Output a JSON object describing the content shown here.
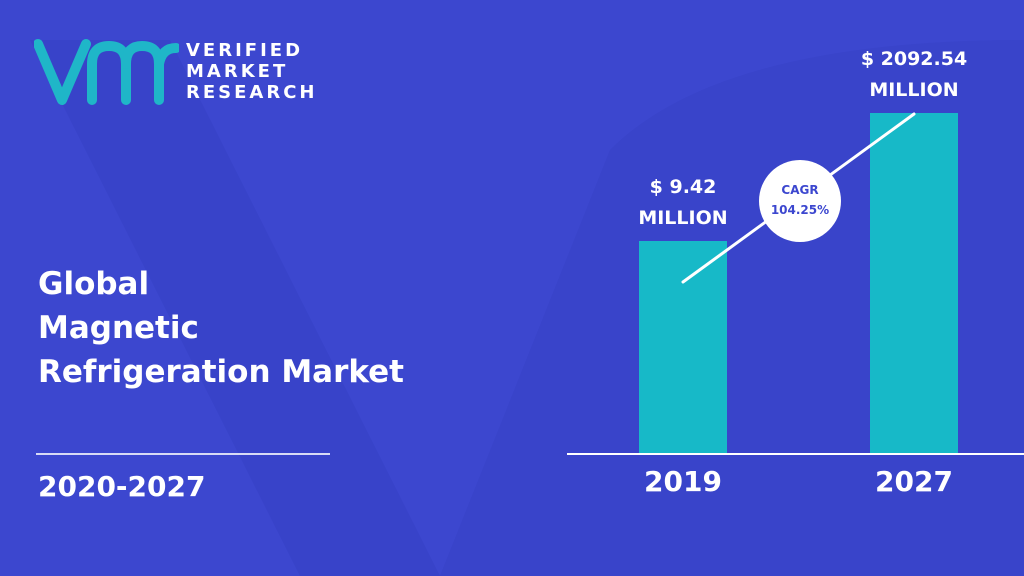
{
  "brand": {
    "name_line1": "VERIFIED",
    "name_line2": "MARKET",
    "name_line3": "RESEARCH"
  },
  "title": {
    "line1": "Global",
    "line2": "Magnetic",
    "line3": "Refrigeration Market"
  },
  "period": "2020-2027",
  "colors": {
    "background": "#3c47cf",
    "bar": "#17b9c8",
    "text": "#ffffff",
    "cagr_text": "#3c47cf"
  },
  "chart_data": {
    "type": "bar",
    "categories": [
      "2019",
      "2027"
    ],
    "values": [
      9.42,
      2092.54
    ],
    "value_labels": [
      [
        "$ 9.42",
        "MILLION"
      ],
      [
        "$ 2092.54",
        "MILLION"
      ]
    ],
    "annotation": {
      "line1": "CAGR",
      "line2": "104.25%"
    }
  }
}
